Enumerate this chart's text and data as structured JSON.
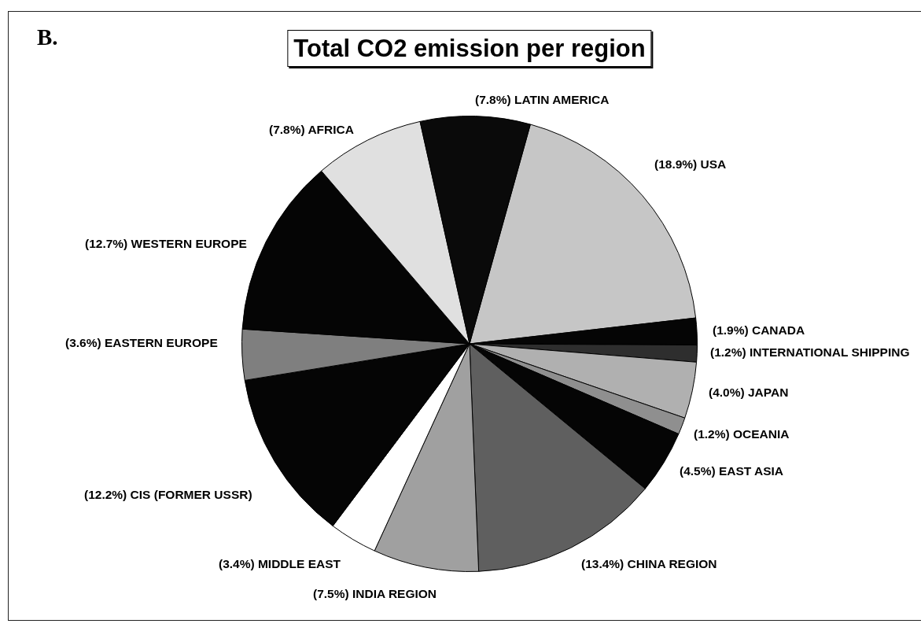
{
  "chart_data": {
    "type": "pie",
    "title": "Total CO2 emission per region",
    "annotations": [
      "B."
    ],
    "categories": [
      "USA",
      "CANADA",
      "INTERNATIONAL SHIPPING",
      "JAPAN",
      "OCEANIA",
      "EAST ASIA",
      "CHINA REGION",
      "INDIA REGION",
      "MIDDLE EAST",
      "CIS (FORMER USSR)",
      "EASTERN EUROPE",
      "WESTERN EUROPE",
      "AFRICA",
      "LATIN AMERICA"
    ],
    "values": [
      18.9,
      1.9,
      1.2,
      4.0,
      1.2,
      4.5,
      13.4,
      7.5,
      3.4,
      12.2,
      3.6,
      12.7,
      7.8,
      7.8
    ],
    "value_labels": [
      "(18.9%)",
      "(1.9%)",
      "(1.2%)",
      "(4.0%)",
      "(1.2%)",
      "(4.5%)",
      "(13.4%)",
      "(7.5%)",
      "(3.4%)",
      "(12.2%)",
      "(3.6%)",
      "(12.7%)",
      "(7.8%)",
      "(7.8%)"
    ],
    "colors": [
      "#c6c6c6",
      "#050505",
      "#2e2e2e",
      "#b0b0b0",
      "#8f8f8f",
      "#050505",
      "#5f5f5f",
      "#a0a0a0",
      "#ffffff",
      "#050505",
      "#7f7f7f",
      "#050505",
      "#e0e0e0",
      "#0a0a0a"
    ]
  }
}
